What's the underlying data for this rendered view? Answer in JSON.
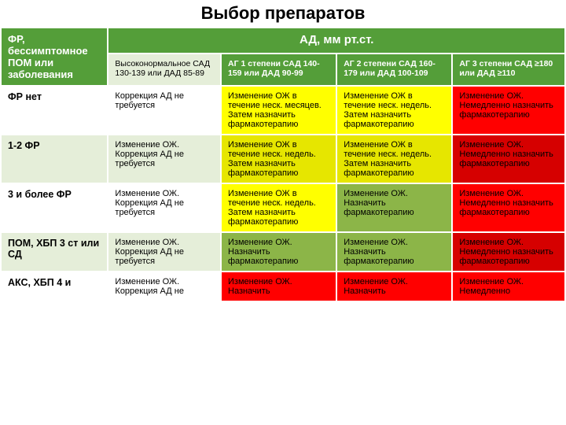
{
  "title": "Выбор препаратов",
  "colors": {
    "header_green": "#549e39",
    "light_green": "#e5eed9",
    "yellow": "#ffff00",
    "yellow_alt": "#e6e600",
    "olive": "#8cb548",
    "red": "#ff0000",
    "red_alt": "#d60000",
    "white": "#ffffff",
    "text": "#000000"
  },
  "header": {
    "rowcol": "ФР, бессимптомное ПОМ или заболевания",
    "span": "АД, мм рт.ст.",
    "cols": [
      "Высоконормальное САД 130-139 или ДАД 85-89",
      "АГ 1 степени САД 140-159 или ДАД 90-99",
      "АГ 2 степени САД 160-179 или ДАД 100-109",
      "АГ 3 степени САД ≥180 или ДАД ≥110"
    ]
  },
  "rows": [
    {
      "label": "ФР нет",
      "labelClass": "row-label",
      "cells": [
        {
          "text": "Коррекция АД не требуется",
          "class": "c-white"
        },
        {
          "text": "Изменение ОЖ в течение неск. месяцев. Затем назначить фармакотерапию",
          "class": "c-yellow"
        },
        {
          "text": "Изменение ОЖ в течение неск. недель. Затем назначить фармакотерапию",
          "class": "c-yellow"
        },
        {
          "text": "Изменение ОЖ. Немедленно назначить фармакотерапию",
          "class": "c-red"
        }
      ]
    },
    {
      "label": "1-2 ФР",
      "labelClass": "row-label-alt",
      "cells": [
        {
          "text": "Изменение ОЖ. Коррекция АД не требуется",
          "class": "c-lt"
        },
        {
          "text": "Изменение ОЖ в течение неск. недель. Затем назначить фармакотерапию",
          "class": "c-dyellow"
        },
        {
          "text": "Изменение ОЖ в течение неск. недель. Затем назначить фармакотерапию",
          "class": "c-dyellow"
        },
        {
          "text": "Изменение ОЖ. Немедленно назначить фармакотерапию",
          "class": "c-dred"
        }
      ]
    },
    {
      "label": "3 и более ФР",
      "labelClass": "row-label",
      "cells": [
        {
          "text": "Изменение ОЖ. Коррекция АД не требуется",
          "class": "c-white"
        },
        {
          "text": "Изменение ОЖ в течение неск. недель. Затем назначить фармакотерапию",
          "class": "c-yellow"
        },
        {
          "text": "Изменение ОЖ. Назначить фармакотерапию",
          "class": "c-olive"
        },
        {
          "text": "Изменение ОЖ. Немедленно назначить фармакотерапию",
          "class": "c-red"
        }
      ]
    },
    {
      "label": "ПОМ, ХБП 3 ст или СД",
      "labelClass": "row-label-alt",
      "cells": [
        {
          "text": "Изменение ОЖ. Коррекция АД не требуется",
          "class": "c-lt"
        },
        {
          "text": "Изменение ОЖ. Назначить фармакотерапию",
          "class": "c-olive"
        },
        {
          "text": "Изменение ОЖ. Назначить фармакотерапию",
          "class": "c-olive"
        },
        {
          "text": "Изменение ОЖ. Немедленно назначить фармакотерапию",
          "class": "c-dred"
        }
      ]
    },
    {
      "label": "АКС, ХБП 4 и",
      "labelClass": "row-label",
      "cells": [
        {
          "text": "Изменение ОЖ. Коррекция АД не",
          "class": "c-white"
        },
        {
          "text": "Изменение ОЖ. Назначить",
          "class": "c-red"
        },
        {
          "text": "Изменение ОЖ. Назначить",
          "class": "c-red"
        },
        {
          "text": "Изменение ОЖ. Немедленно",
          "class": "c-red"
        }
      ]
    }
  ]
}
